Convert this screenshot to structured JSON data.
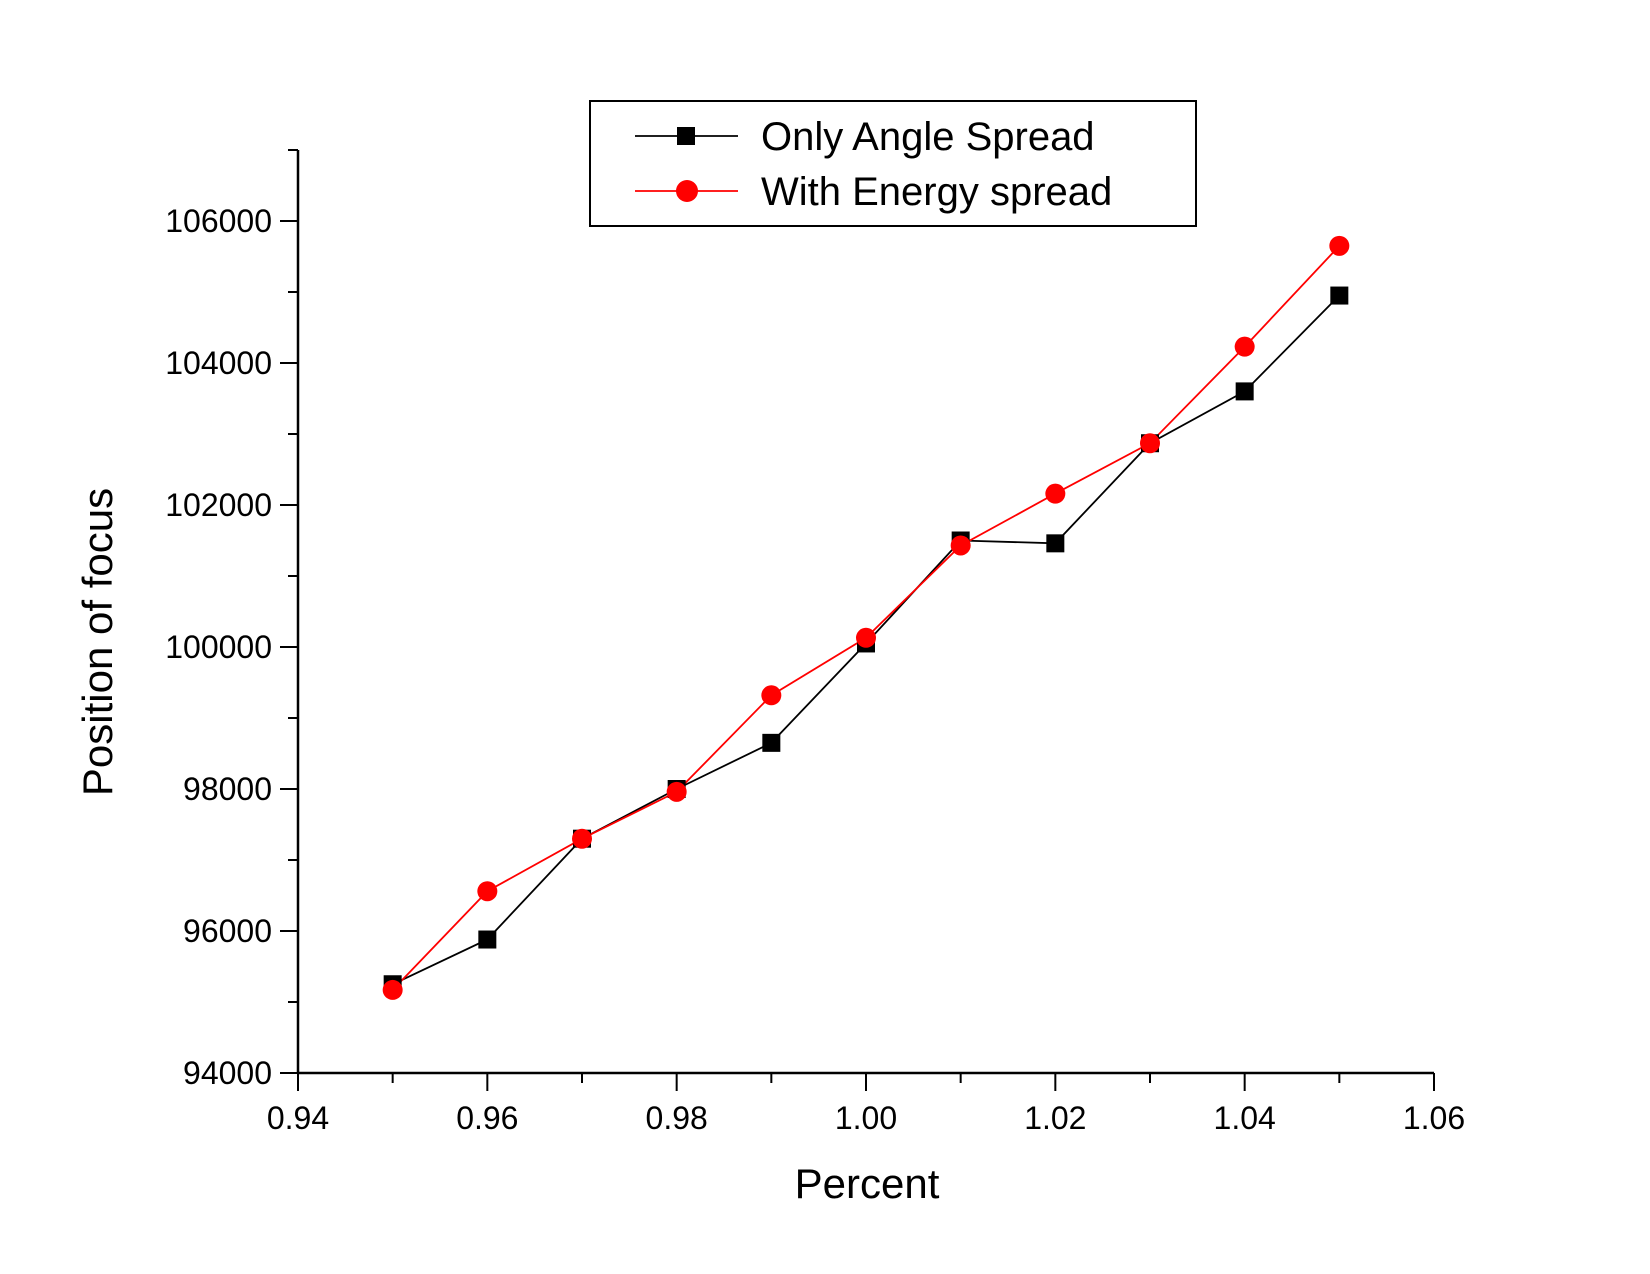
{
  "chart_data": {
    "type": "line",
    "xlabel": "Percent",
    "ylabel": "Position of focus",
    "xlim": [
      0.94,
      1.06
    ],
    "ylim": [
      94000,
      107000
    ],
    "x_ticks": [
      "0.94",
      "0.96",
      "0.98",
      "1.00",
      "1.02",
      "1.04",
      "1.06"
    ],
    "y_ticks": [
      "94000",
      "96000",
      "98000",
      "100000",
      "102000",
      "104000",
      "106000"
    ],
    "grid": false,
    "legend_position": "top-center",
    "x": [
      0.95,
      0.96,
      0.97,
      0.98,
      0.99,
      1.0,
      1.01,
      1.02,
      1.03,
      1.04,
      1.05
    ],
    "series": [
      {
        "name": "Only Angle Spread",
        "color": "#000000",
        "marker": "square",
        "values": [
          95250,
          95880,
          97300,
          98000,
          98650,
          100050,
          101500,
          101460,
          102870,
          103600,
          104950
        ]
      },
      {
        "name": "With Energy spread",
        "color": "#ff0000",
        "marker": "circle",
        "values": [
          95170,
          96560,
          97300,
          97960,
          99320,
          100130,
          101430,
          102160,
          102870,
          104230,
          105650
        ]
      }
    ]
  }
}
